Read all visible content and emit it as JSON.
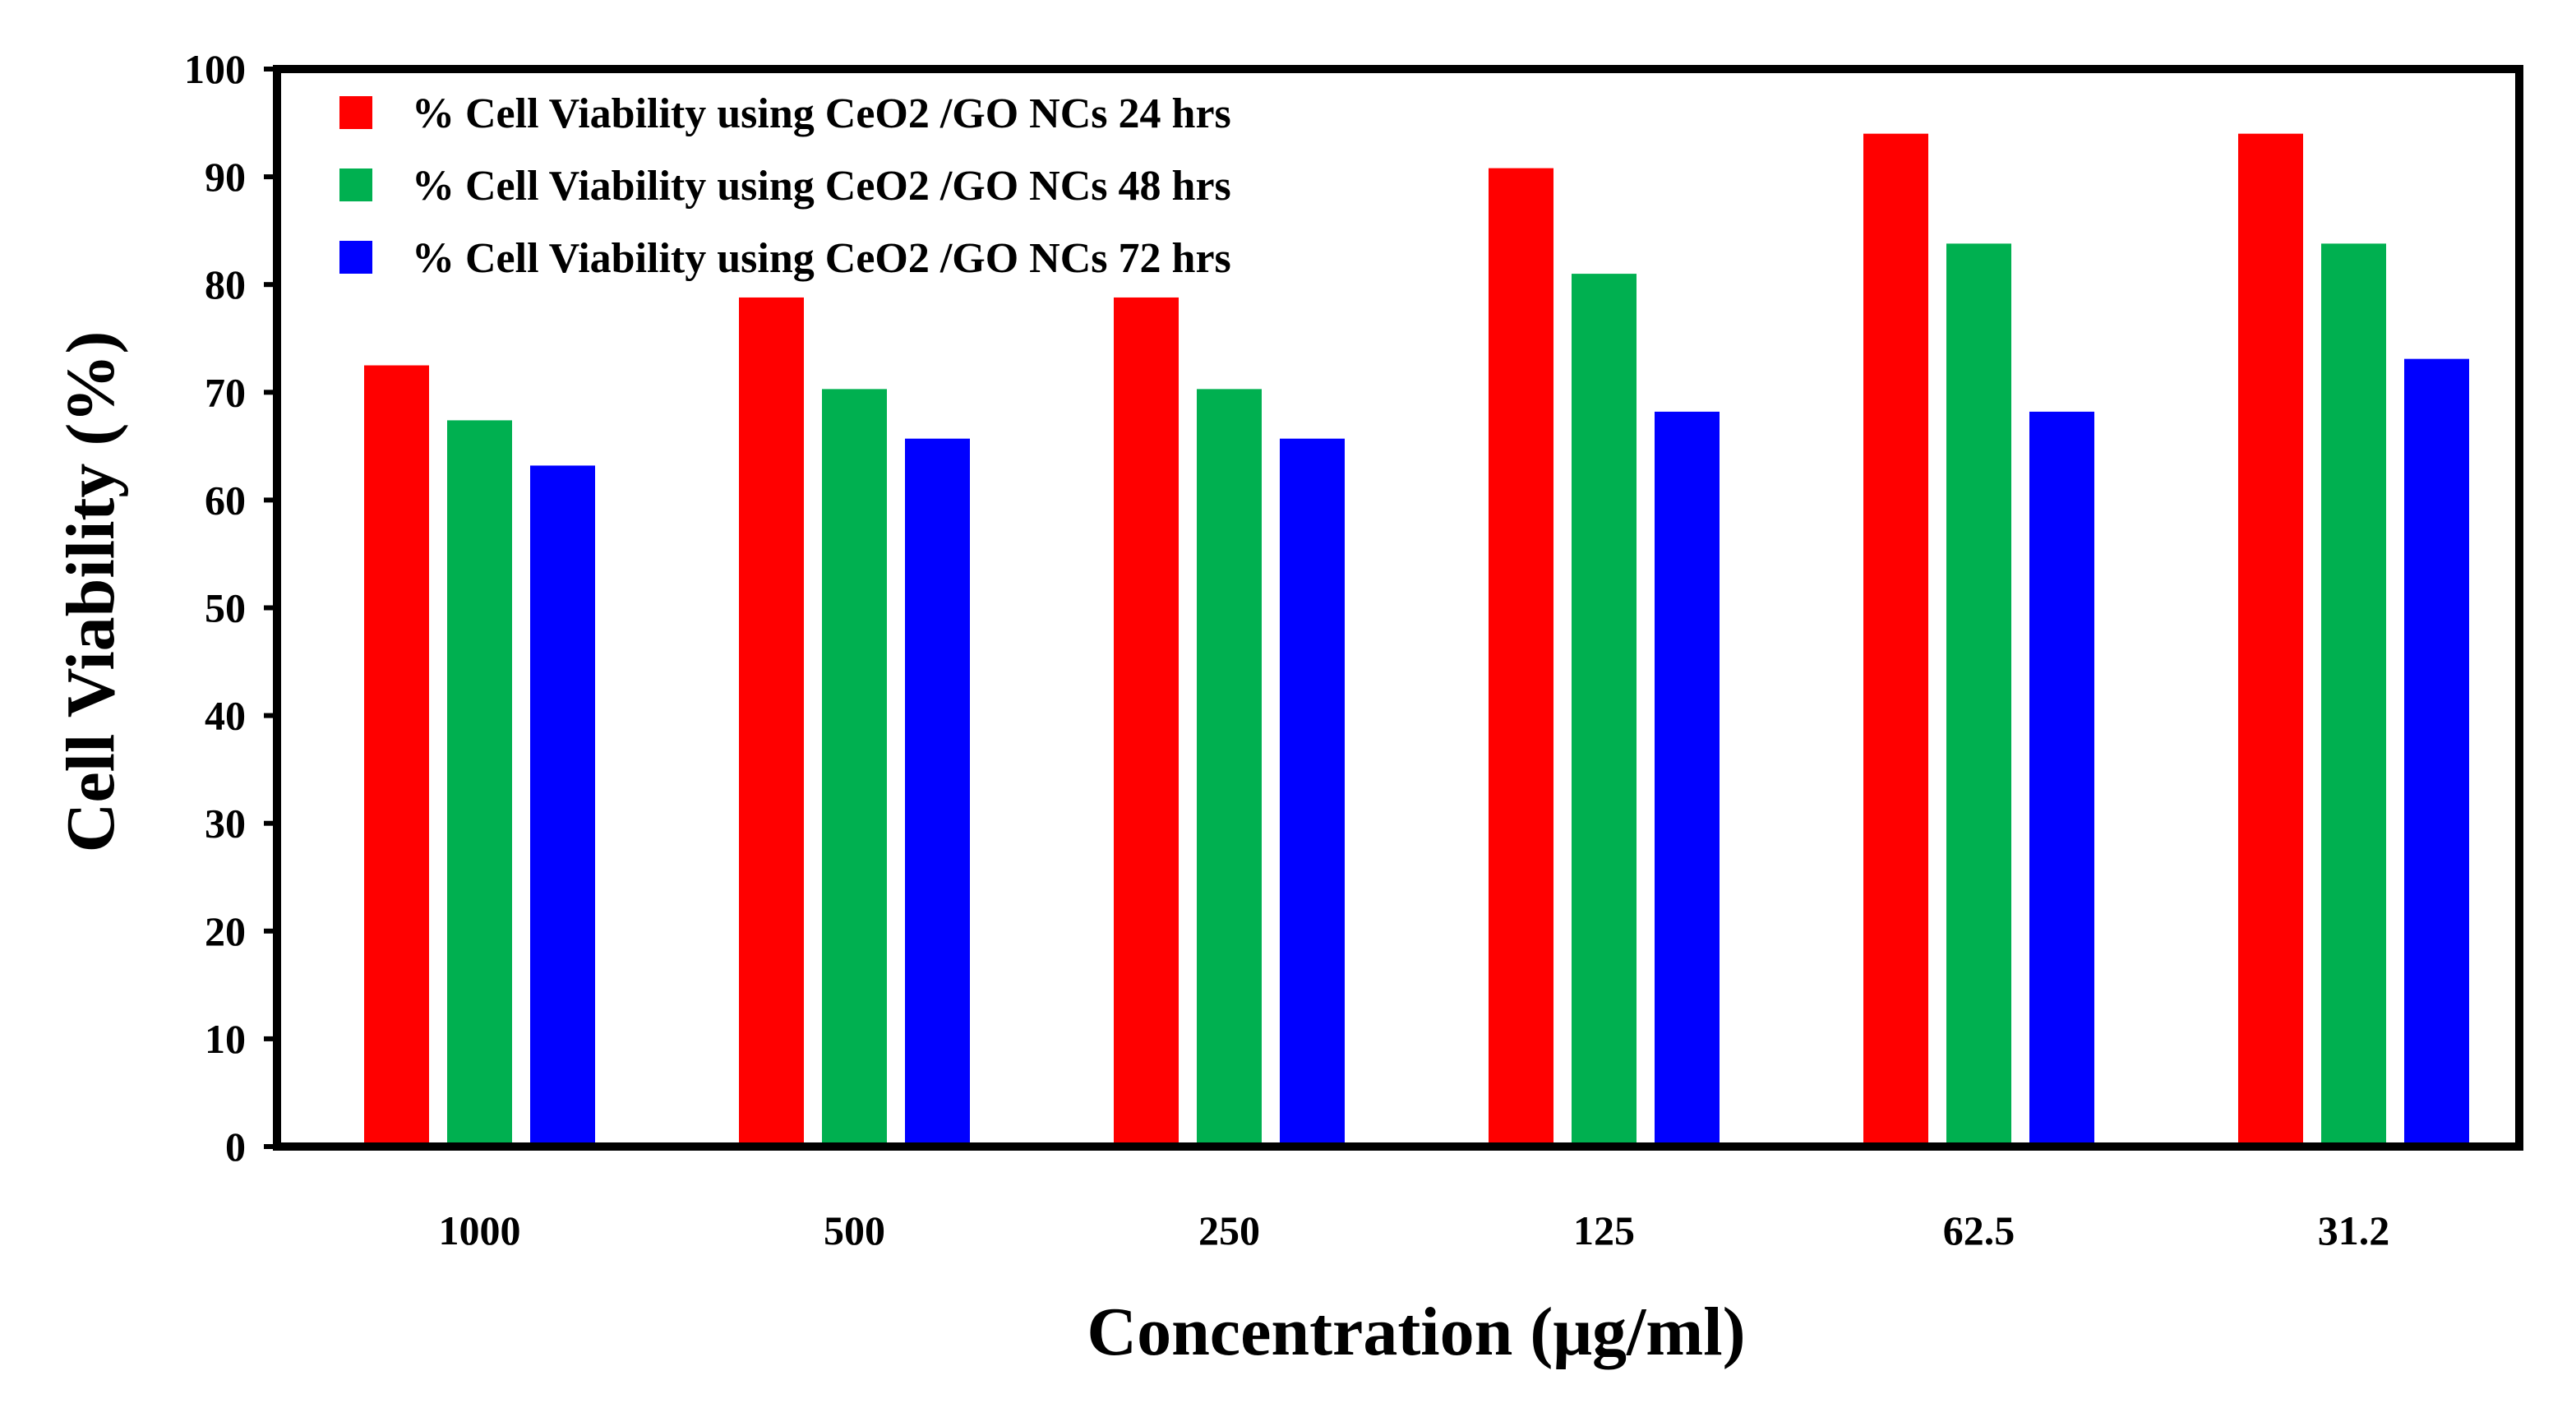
{
  "chart_data": {
    "type": "bar",
    "title": "",
    "xlabel": "Concentration (μg/ml)",
    "ylabel": "Cell Viability (%)",
    "ylim": [
      0,
      100
    ],
    "y_ticks": [
      0,
      10,
      20,
      30,
      40,
      50,
      60,
      70,
      80,
      90,
      100
    ],
    "categories": [
      "1000",
      "500",
      "250",
      "125",
      "62.5",
      "31.2"
    ],
    "legend_position": "top-left",
    "grid": false,
    "series": [
      {
        "name": "% Cell Viability using CeO2 /GO NCs 24 hrs",
        "color": "#ff0000",
        "values": [
          72.5,
          78.8,
          78.8,
          90.8,
          94.0,
          94.0
        ]
      },
      {
        "name": "% Cell Viability using CeO2 /GO NCs 48 hrs",
        "color": "#00b050",
        "values": [
          67.4,
          70.3,
          70.3,
          81.0,
          83.8,
          83.8
        ]
      },
      {
        "name": "% Cell Viability using CeO2 /GO NCs 72 hrs",
        "color": "#0000ff",
        "values": [
          63.2,
          65.7,
          65.7,
          68.2,
          68.2,
          73.1
        ]
      }
    ]
  }
}
